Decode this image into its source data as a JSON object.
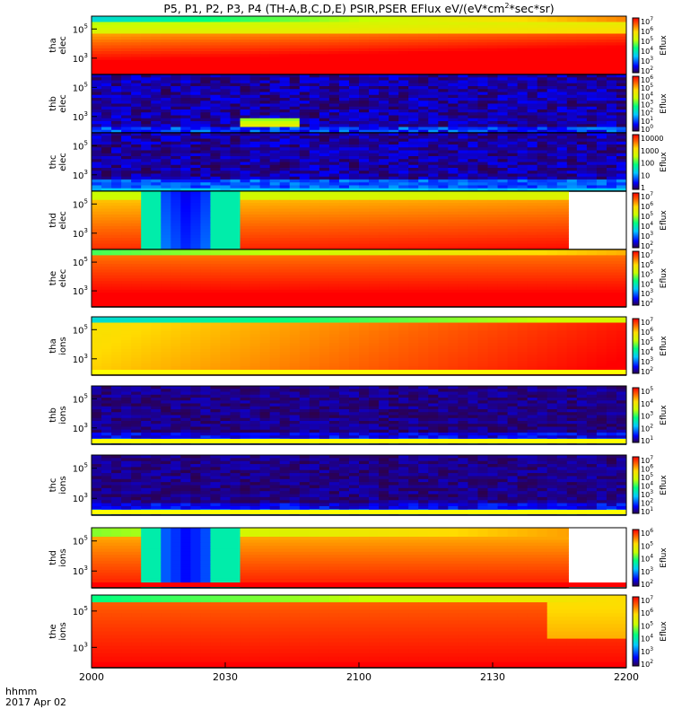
{
  "title": "P5, P1, P2, P3, P4 (TH-A,B,C,D,E) PSIR,PSER EFlux eV/(eV*cm",
  "title_sup": "2",
  "title_tail": "*sec*sr)",
  "colorbar_label": "Eflux",
  "footer": {
    "time_label": "hhmm",
    "date_label": "2017 Apr 02"
  },
  "chart_data": {
    "type": "heatmap",
    "x_ticks": [
      "2000",
      "2030",
      "2100",
      "2130",
      "2200"
    ],
    "xlim": [
      "2000",
      "2200"
    ],
    "panels": [
      {
        "name": "tha-elec",
        "label1": "tha",
        "label2": "elec",
        "y_ticks": [
          {
            "base": "10",
            "exp": "5"
          },
          {
            "base": "10",
            "exp": "3"
          }
        ],
        "cbar_ticks": [
          {
            "base": "10",
            "exp": "7"
          },
          {
            "base": "10",
            "exp": "6"
          },
          {
            "base": "10",
            "exp": "5"
          },
          {
            "base": "10",
            "exp": "4"
          },
          {
            "base": "10",
            "exp": "3"
          },
          {
            "base": "10",
            "exp": "2"
          }
        ],
        "pattern": "hot",
        "data_end": "2200",
        "strip": null
      },
      {
        "name": "thb-elec",
        "label1": "thb",
        "label2": "elec",
        "y_ticks": [
          {
            "base": "10",
            "exp": "5"
          },
          {
            "base": "10",
            "exp": "3"
          }
        ],
        "cbar_ticks": [
          {
            "base": "10",
            "exp": "6"
          },
          {
            "base": "10",
            "exp": "5"
          },
          {
            "base": "10",
            "exp": "4"
          },
          {
            "base": "10",
            "exp": "3"
          },
          {
            "base": "10",
            "exp": "2"
          },
          {
            "base": "10",
            "exp": "1"
          },
          {
            "base": "10",
            "exp": "0"
          }
        ],
        "pattern": "noise",
        "data_end": "2200",
        "strip": null
      },
      {
        "name": "thc-elec",
        "label1": "thc",
        "label2": "elec",
        "y_ticks": [
          {
            "base": "10",
            "exp": "5"
          },
          {
            "base": "10",
            "exp": "3"
          }
        ],
        "cbar_ticks": [
          {
            "base": "10000",
            "exp": ""
          },
          {
            "base": "1000",
            "exp": ""
          },
          {
            "base": "100",
            "exp": ""
          },
          {
            "base": "10",
            "exp": ""
          },
          {
            "base": "1",
            "exp": ""
          }
        ],
        "pattern": "noise2",
        "data_end": "2200",
        "strip": null
      },
      {
        "name": "thd-elec",
        "label1": "thd",
        "label2": "elec",
        "y_ticks": [
          {
            "base": "10",
            "exp": "5"
          },
          {
            "base": "10",
            "exp": "3"
          }
        ],
        "cbar_ticks": [
          {
            "base": "10",
            "exp": "7"
          },
          {
            "base": "10",
            "exp": "6"
          },
          {
            "base": "10",
            "exp": "5"
          },
          {
            "base": "10",
            "exp": "4"
          },
          {
            "base": "10",
            "exp": "3"
          },
          {
            "base": "10",
            "exp": "2"
          }
        ],
        "pattern": "gap",
        "data_end": "2147",
        "strip": null
      },
      {
        "name": "the-elec",
        "label1": "the",
        "label2": "elec",
        "y_ticks": [
          {
            "base": "10",
            "exp": "5"
          },
          {
            "base": "10",
            "exp": "3"
          }
        ],
        "cbar_ticks": [
          {
            "base": "10",
            "exp": "7"
          },
          {
            "base": "10",
            "exp": "6"
          },
          {
            "base": "10",
            "exp": "5"
          },
          {
            "base": "10",
            "exp": "4"
          },
          {
            "base": "10",
            "exp": "3"
          },
          {
            "base": "10",
            "exp": "2"
          }
        ],
        "pattern": "hot2",
        "data_end": "2200",
        "strip": "#ff0000"
      },
      {
        "name": "tha-ions",
        "label1": "tha",
        "label2": "ions",
        "y_ticks": [
          {
            "base": "10",
            "exp": "5"
          },
          {
            "base": "10",
            "exp": "3"
          }
        ],
        "cbar_ticks": [
          {
            "base": "10",
            "exp": "7"
          },
          {
            "base": "10",
            "exp": "6"
          },
          {
            "base": "10",
            "exp": "5"
          },
          {
            "base": "10",
            "exp": "4"
          },
          {
            "base": "10",
            "exp": "3"
          },
          {
            "base": "10",
            "exp": "2"
          }
        ],
        "pattern": "ions_a",
        "data_end": "2200",
        "strip": "#ffff00"
      },
      {
        "name": "thb-ions",
        "label1": "thb",
        "label2": "ions",
        "y_ticks": [
          {
            "base": "10",
            "exp": "5"
          },
          {
            "base": "10",
            "exp": "3"
          }
        ],
        "cbar_ticks": [
          {
            "base": "10",
            "exp": "5"
          },
          {
            "base": "10",
            "exp": "4"
          },
          {
            "base": "10",
            "exp": "3"
          },
          {
            "base": "10",
            "exp": "2"
          },
          {
            "base": "10",
            "exp": "1"
          }
        ],
        "pattern": "noise3",
        "data_end": "2200",
        "strip": "#ffff00"
      },
      {
        "name": "thc-ions",
        "label1": "thc",
        "label2": "ions",
        "y_ticks": [
          {
            "base": "10",
            "exp": "5"
          },
          {
            "base": "10",
            "exp": "3"
          }
        ],
        "cbar_ticks": [
          {
            "base": "10",
            "exp": "7"
          },
          {
            "base": "10",
            "exp": "6"
          },
          {
            "base": "10",
            "exp": "5"
          },
          {
            "base": "10",
            "exp": "4"
          },
          {
            "base": "10",
            "exp": "3"
          },
          {
            "base": "10",
            "exp": "2"
          },
          {
            "base": "10",
            "exp": "1"
          }
        ],
        "pattern": "noise3",
        "data_end": "2200",
        "strip": "#ffff00"
      },
      {
        "name": "thd-ions",
        "label1": "thd",
        "label2": "ions",
        "y_ticks": [
          {
            "base": "10",
            "exp": "5"
          },
          {
            "base": "10",
            "exp": "3"
          }
        ],
        "cbar_ticks": [
          {
            "base": "10",
            "exp": "6"
          },
          {
            "base": "10",
            "exp": "5"
          },
          {
            "base": "10",
            "exp": "4"
          },
          {
            "base": "10",
            "exp": "3"
          },
          {
            "base": "10",
            "exp": "2"
          }
        ],
        "pattern": "gap2",
        "data_end": "2147",
        "strip": "#ff0000"
      },
      {
        "name": "the-ions",
        "label1": "the",
        "label2": "ions",
        "y_ticks": [
          {
            "base": "10",
            "exp": "5"
          },
          {
            "base": "10",
            "exp": "3"
          }
        ],
        "cbar_ticks": [
          {
            "base": "10",
            "exp": "7"
          },
          {
            "base": "10",
            "exp": "6"
          },
          {
            "base": "10",
            "exp": "5"
          },
          {
            "base": "10",
            "exp": "4"
          },
          {
            "base": "10",
            "exp": "3"
          },
          {
            "base": "10",
            "exp": "2"
          }
        ],
        "pattern": "hot3",
        "data_end": "2200",
        "strip": "#ff0000"
      }
    ]
  }
}
